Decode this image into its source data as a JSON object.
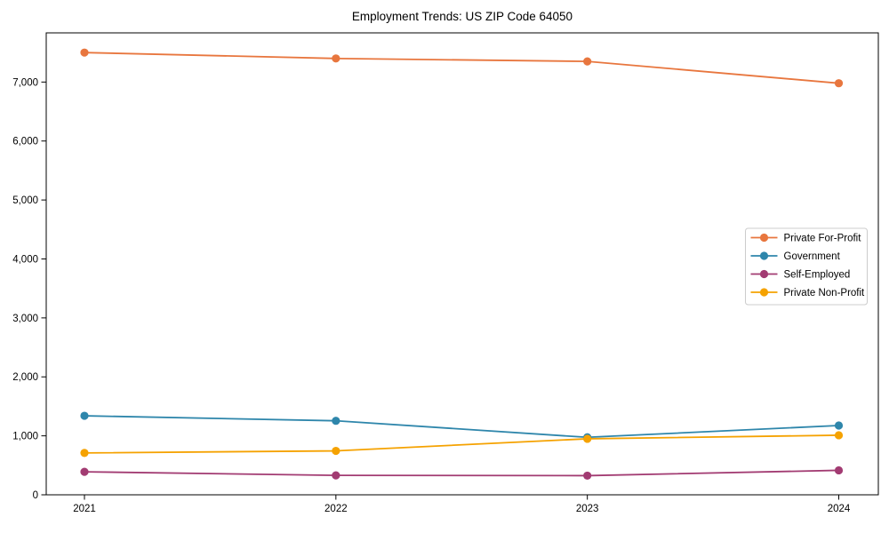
{
  "figure": {
    "background": "#ffffff",
    "text_color": "#000000",
    "axis_color": "#000000",
    "legend_border_color": "#cccccc",
    "legend_background": "#ffffff"
  },
  "chart_data": {
    "type": "line",
    "title": "Employment Trends: US ZIP Code 64050",
    "xlabel": "",
    "ylabel": "",
    "x": [
      2021,
      2022,
      2023,
      2024
    ],
    "x_tick_labels": [
      "2021",
      "2022",
      "2023",
      "2024"
    ],
    "series": [
      {
        "name": "Private For-Profit",
        "color": "#E8763E",
        "values": [
          7500,
          7400,
          7350,
          6980
        ]
      },
      {
        "name": "Government",
        "color": "#2E86AB",
        "values": [
          1340,
          1255,
          975,
          1175
        ]
      },
      {
        "name": "Self-Employed",
        "color": "#A23B72",
        "values": [
          390,
          330,
          325,
          415
        ]
      },
      {
        "name": "Private Non-Profit",
        "color": "#F5A201",
        "values": [
          710,
          745,
          950,
          1010
        ]
      }
    ],
    "ylim": [
      0,
      7834
    ],
    "yticks": [
      0,
      1000,
      2000,
      3000,
      4000,
      5000,
      6000,
      7000
    ],
    "ytick_labels": [
      "0",
      "1,000",
      "2,000",
      "3,000",
      "4,000",
      "5,000",
      "6,000",
      "7,000"
    ],
    "grid": false,
    "legend_position": "center right",
    "marker": "circle",
    "line_width": 1.8,
    "marker_radius": 4.6
  }
}
